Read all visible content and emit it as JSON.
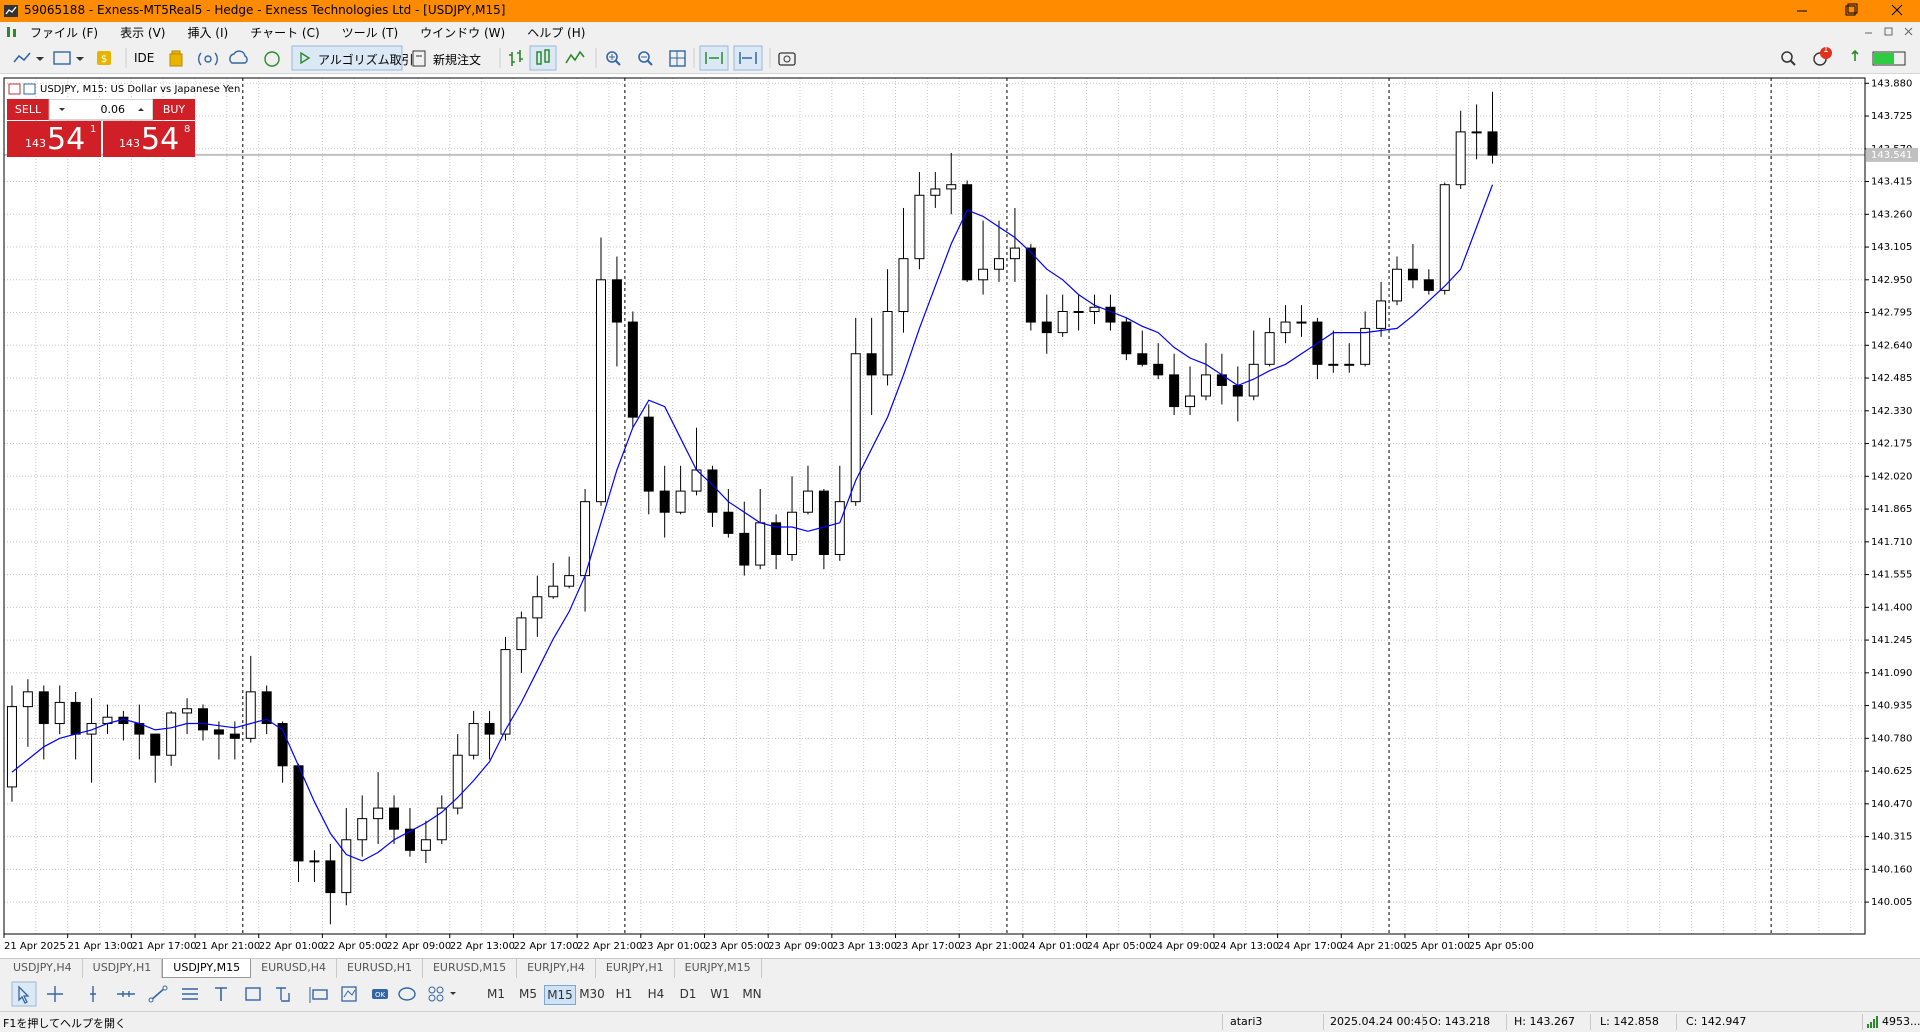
{
  "window": {
    "title": "59065188 - Exness-MT5Real5 - Hedge - Exness Technologies Ltd - [USDJPY,M15]",
    "menu": [
      "ファイル (F)",
      "表示 (V)",
      "挿入 (I)",
      "チャート (C)",
      "ツール (T)",
      "ウインドウ (W)",
      "ヘルプ (H)"
    ]
  },
  "toolbar": {
    "ide": "IDE",
    "algo": "アルゴリズム取引",
    "new_order": "新規注文",
    "badge": "1"
  },
  "trade_panel": {
    "sell": "SELL",
    "buy": "BUY",
    "lot": "0.06",
    "sell_price": {
      "big": "143",
      "main": "54",
      "small": "1"
    },
    "buy_price": {
      "big": "143",
      "main": "54",
      "small": "8"
    }
  },
  "chart_data": {
    "type": "candlestick",
    "title": "USDJPY, M15:  US Dollar vs Japanese Yen",
    "x_labels": [
      "21 Apr 2025",
      "21 Apr 13:00",
      "21 Apr 17:00",
      "21 Apr 21:00",
      "22 Apr 01:00",
      "22 Apr 05:00",
      "22 Apr 09:00",
      "22 Apr 13:00",
      "22 Apr 17:00",
      "22 Apr 21:00",
      "23 Apr 01:00",
      "23 Apr 05:00",
      "23 Apr 09:00",
      "23 Apr 13:00",
      "23 Apr 17:00",
      "23 Apr 21:00",
      "24 Apr 01:00",
      "24 Apr 05:00",
      "24 Apr 09:00",
      "24 Apr 13:00",
      "24 Apr 17:00",
      "24 Apr 21:00",
      "25 Apr 01:00",
      "25 Apr 05:00"
    ],
    "ohlc": [
      [
        140.55,
        141.03,
        140.48,
        140.93
      ],
      [
        140.93,
        141.06,
        140.74,
        141.0
      ],
      [
        141.0,
        141.03,
        140.68,
        140.85
      ],
      [
        140.85,
        141.03,
        140.8,
        140.95
      ],
      [
        140.95,
        141.0,
        140.68,
        140.8
      ],
      [
        140.8,
        140.97,
        140.57,
        140.85
      ],
      [
        140.85,
        140.94,
        140.8,
        140.88
      ],
      [
        140.88,
        140.91,
        140.77,
        140.85
      ],
      [
        140.85,
        140.94,
        140.68,
        140.8
      ],
      [
        140.8,
        140.8,
        140.57,
        140.7
      ],
      [
        140.7,
        140.91,
        140.65,
        140.9
      ],
      [
        140.9,
        140.97,
        140.8,
        140.92
      ],
      [
        140.92,
        140.94,
        140.77,
        140.82
      ],
      [
        140.82,
        140.86,
        140.68,
        140.8
      ],
      [
        140.8,
        140.86,
        140.68,
        140.78
      ],
      [
        140.78,
        141.17,
        140.76,
        141.0
      ],
      [
        141.0,
        141.03,
        140.8,
        140.85
      ],
      [
        140.85,
        140.86,
        140.57,
        140.65
      ],
      [
        140.65,
        140.66,
        140.1,
        140.2
      ],
      [
        140.2,
        140.25,
        140.1,
        140.2
      ],
      [
        140.2,
        140.28,
        139.9,
        140.05
      ],
      [
        140.05,
        140.45,
        139.99,
        140.3
      ],
      [
        140.3,
        140.51,
        140.22,
        140.4
      ],
      [
        140.4,
        140.62,
        140.28,
        140.45
      ],
      [
        140.45,
        140.51,
        140.28,
        140.35
      ],
      [
        140.35,
        140.45,
        140.22,
        140.25
      ],
      [
        140.25,
        140.39,
        140.19,
        140.3
      ],
      [
        140.3,
        140.51,
        140.28,
        140.45
      ],
      [
        140.45,
        140.8,
        140.42,
        140.7
      ],
      [
        140.7,
        140.91,
        140.68,
        140.85
      ],
      [
        140.85,
        140.91,
        140.68,
        140.8
      ],
      [
        140.8,
        141.26,
        140.77,
        141.2
      ],
      [
        141.2,
        141.38,
        141.09,
        141.35
      ],
      [
        141.35,
        141.55,
        141.26,
        141.45
      ],
      [
        141.45,
        141.61,
        141.44,
        141.5
      ],
      [
        141.5,
        141.64,
        141.49,
        141.55
      ],
      [
        141.55,
        141.96,
        141.38,
        141.9
      ],
      [
        141.9,
        143.15,
        141.88,
        142.95
      ],
      [
        142.95,
        143.06,
        142.54,
        142.75
      ],
      [
        142.75,
        142.8,
        142.25,
        142.3
      ],
      [
        142.3,
        142.36,
        141.84,
        141.95
      ],
      [
        141.95,
        142.07,
        141.73,
        141.85
      ],
      [
        141.85,
        142.07,
        141.84,
        141.95
      ],
      [
        141.95,
        142.25,
        141.93,
        142.05
      ],
      [
        142.05,
        142.07,
        141.78,
        141.85
      ],
      [
        141.85,
        141.96,
        141.73,
        141.75
      ],
      [
        141.75,
        141.9,
        141.55,
        141.6
      ],
      [
        141.6,
        141.96,
        141.58,
        141.8
      ],
      [
        141.8,
        141.84,
        141.58,
        141.65
      ],
      [
        141.65,
        142.02,
        141.62,
        141.85
      ],
      [
        141.85,
        142.07,
        141.84,
        141.95
      ],
      [
        141.95,
        141.96,
        141.58,
        141.65
      ],
      [
        141.65,
        142.07,
        141.62,
        141.9
      ],
      [
        141.9,
        142.77,
        141.88,
        142.6
      ],
      [
        142.6,
        142.77,
        142.31,
        142.5
      ],
      [
        142.5,
        143.0,
        142.45,
        142.8
      ],
      [
        142.8,
        143.29,
        142.7,
        143.05
      ],
      [
        143.05,
        143.46,
        143.0,
        143.35
      ],
      [
        143.35,
        143.46,
        143.29,
        143.38
      ],
      [
        143.38,
        143.55,
        143.26,
        143.4
      ],
      [
        143.4,
        143.42,
        142.94,
        142.95
      ],
      [
        142.95,
        143.23,
        142.88,
        143.0
      ],
      [
        143.0,
        143.23,
        142.94,
        143.05
      ],
      [
        143.05,
        143.29,
        142.94,
        143.1
      ],
      [
        143.1,
        143.12,
        142.71,
        142.75
      ],
      [
        142.75,
        142.88,
        142.6,
        142.7
      ],
      [
        142.7,
        142.88,
        142.68,
        142.8
      ],
      [
        142.8,
        142.88,
        142.71,
        142.8
      ],
      [
        142.8,
        142.88,
        142.74,
        142.82
      ],
      [
        142.82,
        142.88,
        142.71,
        142.75
      ],
      [
        142.75,
        142.77,
        142.57,
        142.6
      ],
      [
        142.6,
        142.71,
        142.54,
        142.55
      ],
      [
        142.55,
        142.65,
        142.48,
        142.5
      ],
      [
        142.5,
        142.6,
        142.31,
        142.35
      ],
      [
        142.35,
        142.54,
        142.31,
        142.4
      ],
      [
        142.4,
        142.65,
        142.38,
        142.5
      ],
      [
        142.5,
        142.6,
        142.36,
        142.45
      ],
      [
        142.45,
        142.54,
        142.28,
        142.4
      ],
      [
        142.4,
        142.71,
        142.38,
        142.55
      ],
      [
        142.55,
        142.77,
        142.54,
        142.7
      ],
      [
        142.7,
        142.83,
        142.65,
        142.75
      ],
      [
        142.75,
        142.83,
        142.68,
        142.75
      ],
      [
        142.75,
        142.77,
        142.48,
        142.55
      ],
      [
        142.55,
        142.71,
        142.51,
        142.55
      ],
      [
        142.55,
        142.65,
        142.51,
        142.55
      ],
      [
        142.55,
        142.8,
        142.54,
        142.72
      ],
      [
        142.72,
        142.94,
        142.68,
        142.85
      ],
      [
        142.85,
        143.06,
        142.83,
        143.0
      ],
      [
        143.0,
        143.12,
        142.91,
        142.95
      ],
      [
        142.95,
        143.0,
        142.88,
        142.9
      ],
      [
        142.9,
        143.41,
        142.88,
        143.4
      ],
      [
        143.4,
        143.75,
        143.38,
        143.65
      ],
      [
        143.65,
        143.78,
        143.52,
        143.65
      ],
      [
        143.65,
        143.84,
        143.5,
        143.54
      ]
    ],
    "ma": [
      140.62,
      140.68,
      140.74,
      140.78,
      140.8,
      140.82,
      140.85,
      140.87,
      140.85,
      140.82,
      140.83,
      140.85,
      140.85,
      140.84,
      140.83,
      140.85,
      140.87,
      140.82,
      140.65,
      140.48,
      140.33,
      140.23,
      140.2,
      140.24,
      140.3,
      140.34,
      140.38,
      140.43,
      140.5,
      140.58,
      140.67,
      140.82,
      140.95,
      141.1,
      141.25,
      141.38,
      141.55,
      141.8,
      142.05,
      142.25,
      142.38,
      142.35,
      142.2,
      142.05,
      141.98,
      141.9,
      141.85,
      141.8,
      141.78,
      141.78,
      141.76,
      141.78,
      141.8,
      142.0,
      142.15,
      142.3,
      142.5,
      142.72,
      142.92,
      143.12,
      143.28,
      143.25,
      143.2,
      143.15,
      143.08,
      143.0,
      142.95,
      142.88,
      142.83,
      142.8,
      142.77,
      142.73,
      142.7,
      142.63,
      142.58,
      142.55,
      142.5,
      142.45,
      142.48,
      142.52,
      142.55,
      142.6,
      142.65,
      142.7,
      142.7,
      142.7,
      142.71,
      142.72,
      142.78,
      142.85,
      142.92,
      143.0,
      143.2,
      143.4
    ],
    "ylim": [
      139.854,
      143.905
    ],
    "yticks": [
      140.005,
      {
        "value": 140.16,
        "label": "140.160"
      },
      140.315,
      {
        "value": 140.47,
        "label": "140.470"
      },
      140.625,
      {
        "value": 140.78,
        "label": "140.780"
      },
      140.935,
      {
        "value": 141.09,
        "label": "141.090"
      },
      141.245,
      {
        "value": 141.4,
        "label": "141.400"
      },
      141.555,
      {
        "value": 141.71,
        "label": "141.710"
      },
      141.865,
      {
        "value": 142.02,
        "label": "142.020"
      },
      142.175,
      {
        "value": 142.33,
        "label": "142.330"
      },
      142.485,
      {
        "value": 142.64,
        "label": "142.640"
      },
      142.795,
      {
        "value": 142.95,
        "label": "142.950"
      },
      143.105,
      {
        "value": 143.26,
        "label": "143.260"
      },
      143.415,
      {
        "value": 143.57,
        "label": "143.570"
      },
      143.725,
      {
        "value": 143.88,
        "label": "143.880"
      }
    ],
    "bid": 143.541,
    "bull_color": "#ffffff",
    "bear_color": "#000000",
    "ma_color": "#0000ff",
    "grid": true
  },
  "tabs": [
    {
      "label": "USDJPY,H4",
      "active": false
    },
    {
      "label": "USDJPY,H1",
      "active": false
    },
    {
      "label": "USDJPY,M15",
      "active": true
    },
    {
      "label": "EURUSD,H4",
      "active": false
    },
    {
      "label": "EURUSD,H1",
      "active": false
    },
    {
      "label": "EURUSD,M15",
      "active": false
    },
    {
      "label": "EURJPY,H4",
      "active": false
    },
    {
      "label": "EURJPY,H1",
      "active": false
    },
    {
      "label": "EURJPY,M15",
      "active": false
    }
  ],
  "timeframes": [
    {
      "label": "M1",
      "active": false
    },
    {
      "label": "M5",
      "active": false
    },
    {
      "label": "M15",
      "active": true
    },
    {
      "label": "M30",
      "active": false
    },
    {
      "label": "H1",
      "active": false
    },
    {
      "label": "H4",
      "active": false
    },
    {
      "label": "D1",
      "active": false
    },
    {
      "label": "W1",
      "active": false
    },
    {
      "label": "MN",
      "active": false
    }
  ],
  "status": {
    "help": "F1を押してヘルプを開く",
    "profile": "atari3",
    "time": "2025.04.24 00:45",
    "open": "O: 143.218",
    "high": "H: 143.267",
    "low": "L: 142.858",
    "close": "C: 142.947",
    "traffic": "4953..."
  }
}
